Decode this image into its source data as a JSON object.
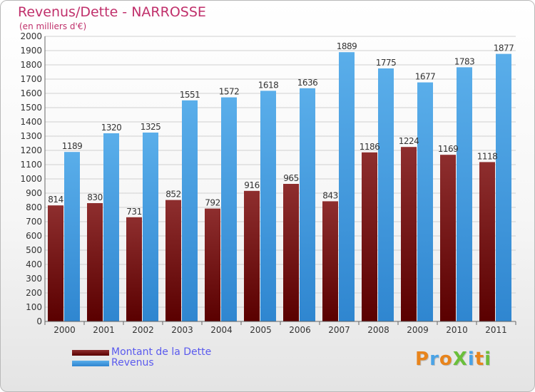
{
  "header": {
    "title": "Revenus/Dette - NARROSSE",
    "subtitle": "(en milliers d'€)"
  },
  "chart_data": {
    "type": "bar",
    "title": "Revenus/Dette - NARROSSE",
    "subtitle": "(en milliers d'€)",
    "categories": [
      "2000",
      "2001",
      "2002",
      "2003",
      "2004",
      "2005",
      "2006",
      "2007",
      "2008",
      "2009",
      "2010",
      "2011"
    ],
    "series": [
      {
        "name": "Montant de la Dette",
        "color": "#7b1a1a",
        "values": [
          814,
          830,
          731,
          852,
          792,
          916,
          965,
          843,
          1186,
          1224,
          1169,
          1118
        ]
      },
      {
        "name": "Revenus",
        "color": "#4aa3e6",
        "values": [
          1189,
          1320,
          1325,
          1551,
          1572,
          1618,
          1636,
          1889,
          1775,
          1677,
          1783,
          1877
        ]
      }
    ],
    "yticks": [
      0,
      100,
      200,
      300,
      400,
      500,
      600,
      700,
      800,
      900,
      1000,
      1100,
      1200,
      1300,
      1400,
      1500,
      1600,
      1700,
      1800,
      1900,
      2000
    ],
    "ylim": [
      0,
      2000
    ],
    "grid": true,
    "legend_position": "bottom-left"
  },
  "legend": {
    "items": [
      {
        "label": "Montant de la Dette",
        "color": "#6e0f0f"
      },
      {
        "label": "Revenus",
        "color": "#4aa3e6"
      }
    ]
  },
  "logo": {
    "text": "ProXiti"
  }
}
